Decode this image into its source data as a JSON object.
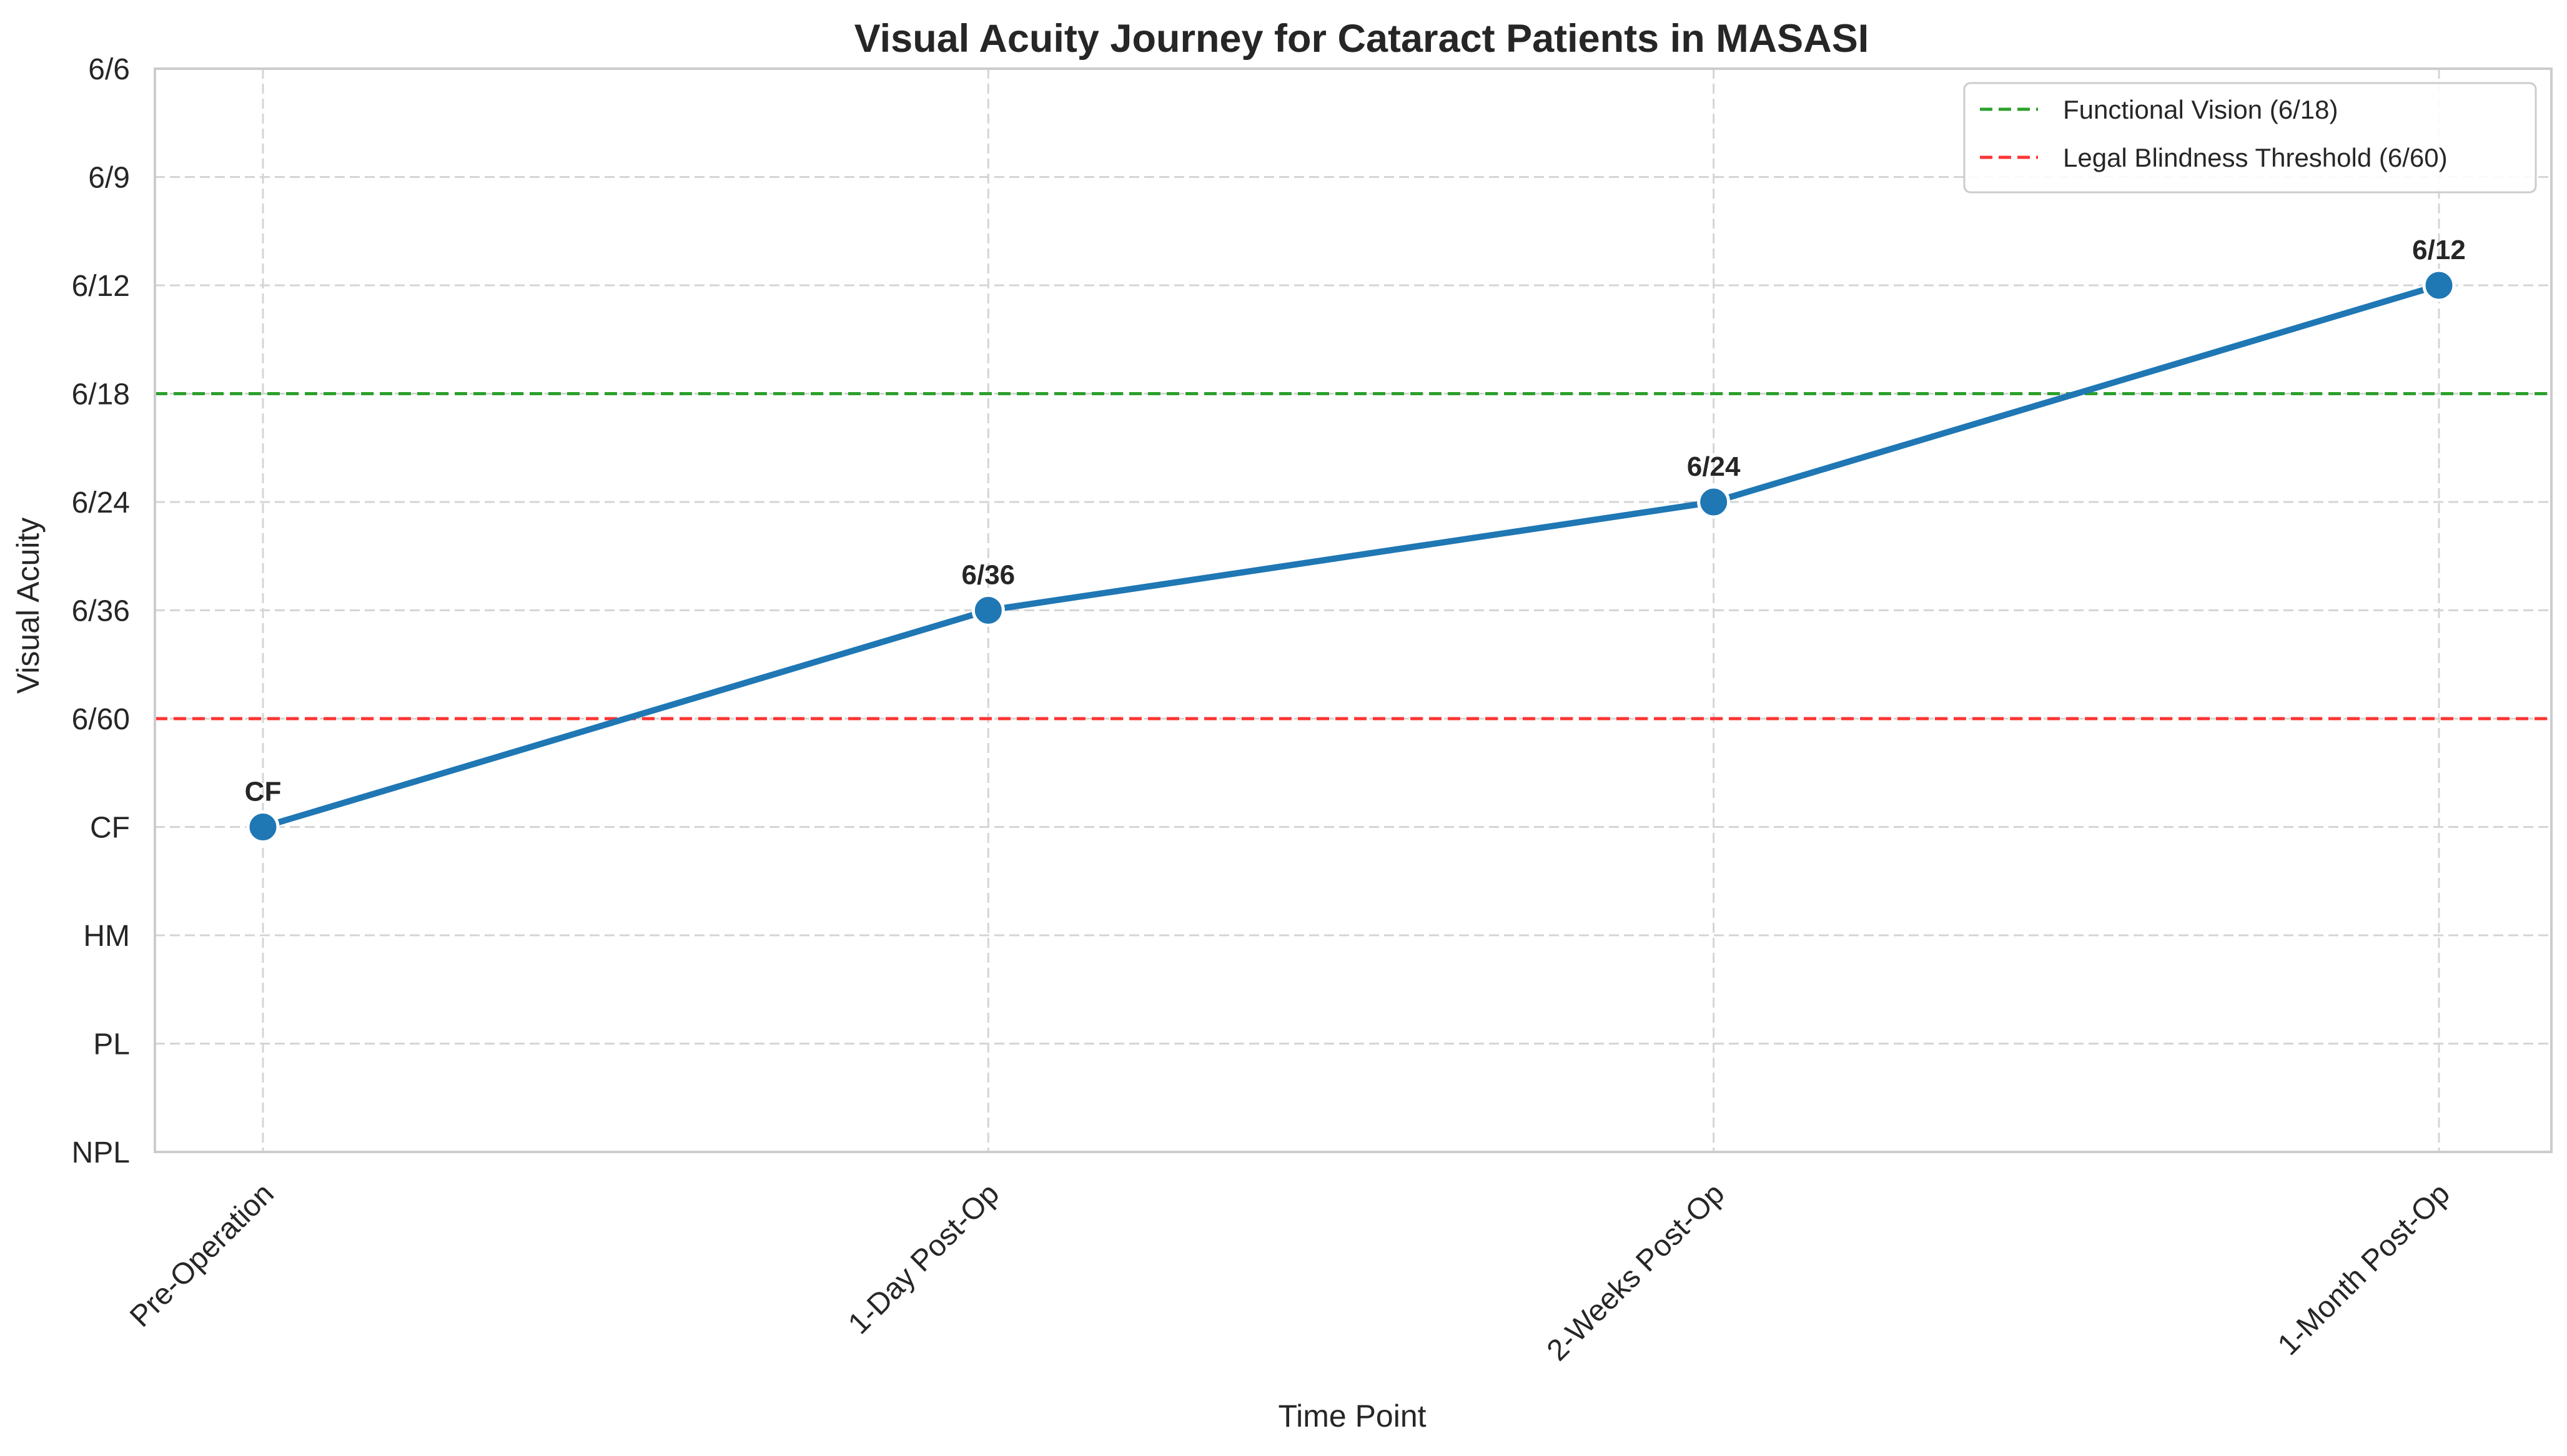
{
  "chart_data": {
    "type": "line",
    "title": "Visual Acuity Journey for Cataract Patients in MASASI",
    "xlabel": "Time Point",
    "ylabel": "Visual Acuity",
    "categories": [
      "Pre-Operation",
      "1-Day Post-Op",
      "2-Weeks Post-Op",
      "1-Month Post-Op"
    ],
    "y_scale": "ordinal",
    "y_ticks": [
      "NPL",
      "PL",
      "HM",
      "CF",
      "6/60",
      "6/36",
      "6/24",
      "6/18",
      "6/12",
      "6/9",
      "6/6"
    ],
    "series": [
      {
        "name": "",
        "color": "#1f77b4",
        "values": [
          "CF",
          "6/36",
          "6/24",
          "6/12"
        ],
        "point_labels": [
          "CF",
          "6/36",
          "6/24",
          "6/12"
        ]
      }
    ],
    "reference_lines": [
      {
        "label": "Functional Vision (6/18)",
        "value": "6/18",
        "color": "#2ca02c",
        "style": "dashed"
      },
      {
        "label": "Legal Blindness Threshold (6/60)",
        "value": "6/60",
        "color": "#ff3333",
        "style": "dashed"
      }
    ],
    "legend_placement": "top-right",
    "grid": true
  }
}
